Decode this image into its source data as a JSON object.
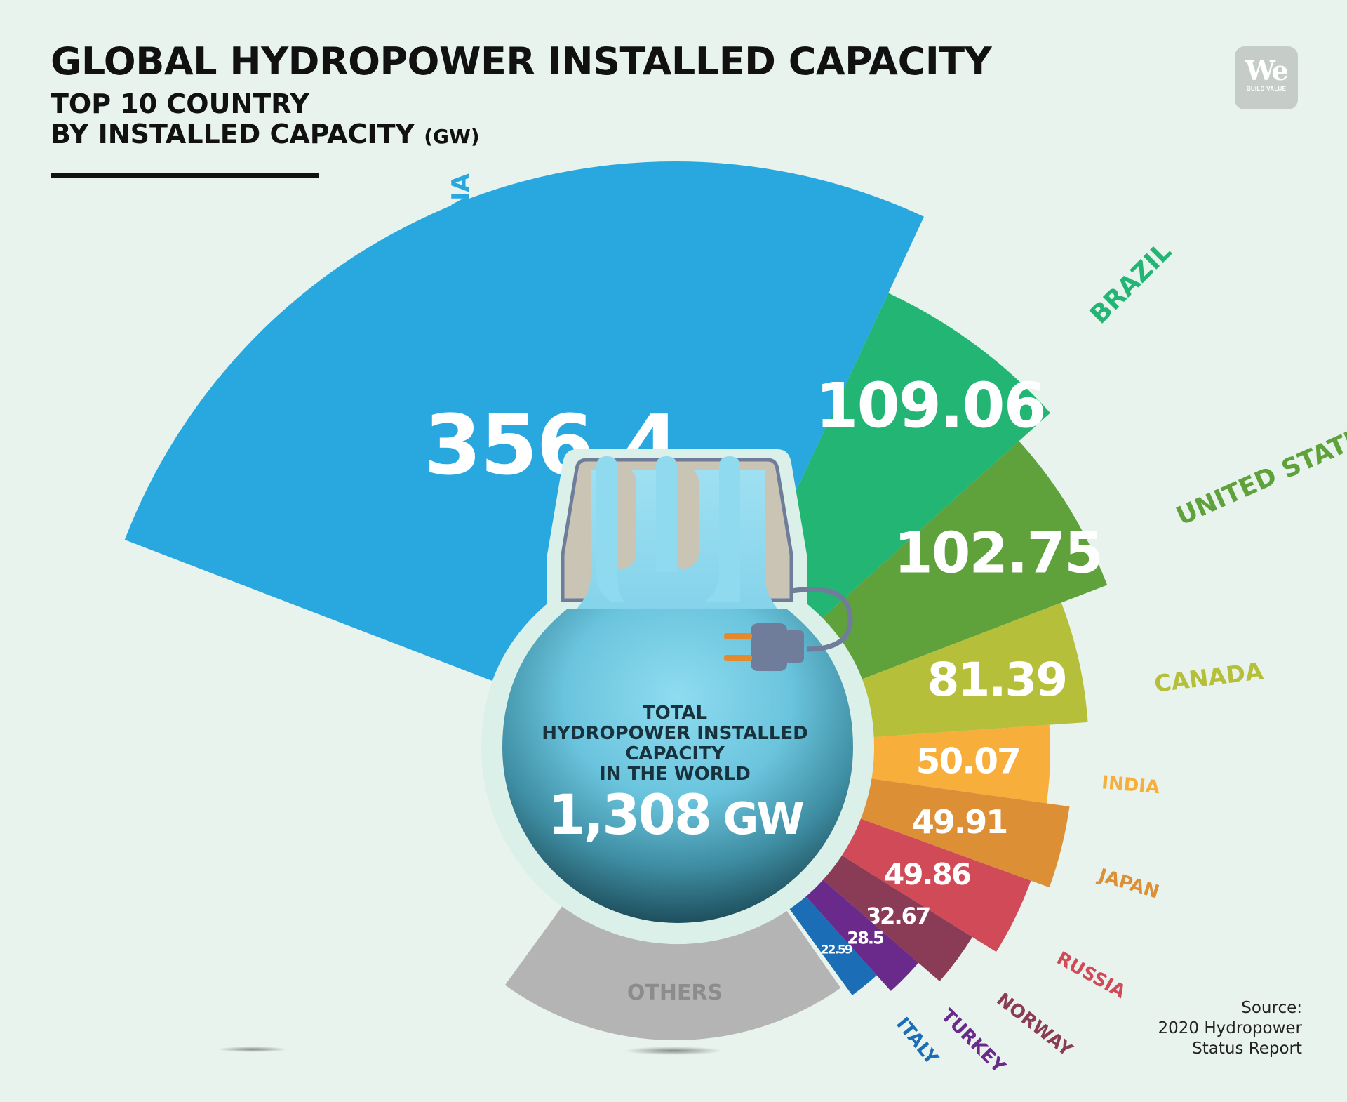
{
  "header": {
    "title": "GLOBAL HYDROPOWER INSTALLED CAPACITY",
    "subtitle_line1": "TOP 10 COUNTRY",
    "subtitle_line2": "BY INSTALLED CAPACITY",
    "subtitle_unit": "(GW)"
  },
  "logo": {
    "main": "We",
    "sub": "BUILD VALUE"
  },
  "center": {
    "line1": "TOTAL",
    "line2": "HYDROPOWER INSTALLED",
    "line3": "CAPACITY",
    "line4": "IN THE WORLD",
    "value": "1,308",
    "unit": "GW"
  },
  "source": {
    "line1": "Source:",
    "line2": "2020 Hydropower",
    "line3": "Status Report"
  },
  "chart_data": {
    "type": "pie",
    "categories": [
      "CHINA",
      "BRAZIL",
      "UNITED STATES",
      "CANADA",
      "INDIA",
      "JAPAN",
      "RUSSIA",
      "NORWAY",
      "TURKEY",
      "ITALY",
      "OTHERS"
    ],
    "values": [
      356.4,
      109.06,
      102.75,
      81.39,
      50.07,
      49.91,
      49.86,
      32.67,
      28.5,
      22.59,
      null
    ],
    "value_labels": [
      "356.4",
      "109.06",
      "102.75",
      "81.39",
      "50.07",
      "49.91",
      "49.86",
      "32.67",
      "28.5",
      "22.59",
      ""
    ],
    "colors": [
      "#29a8e0",
      "#23b573",
      "#5fa23b",
      "#b5bf3a",
      "#f7ae3a",
      "#dc8f35",
      "#d04a58",
      "#8a3c56",
      "#6a2a8c",
      "#1b6eb5",
      "#b4b4b4"
    ],
    "total_label": "1,308 GW",
    "unit": "GW"
  }
}
